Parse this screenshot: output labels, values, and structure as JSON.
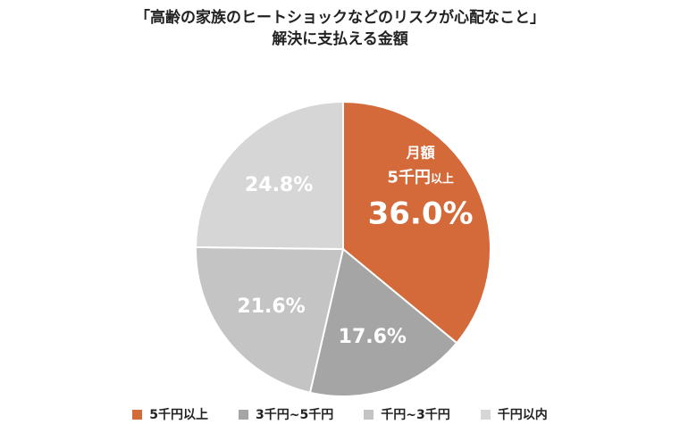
{
  "chart_data": {
    "type": "pie",
    "title": [
      "「高齢の家族のヒートショックなどのリスクが心配なこと」",
      "解決に支払える金額"
    ],
    "categories": [
      "5千円以上",
      "3千円~5千円",
      "千円~3千円",
      "千円以内"
    ],
    "values": [
      36.0,
      17.6,
      21.6,
      24.8
    ],
    "labels": [
      "36.0%",
      "17.6%",
      "21.6%",
      "24.8%"
    ],
    "colors": [
      "#D4693A",
      "#A5A5A5",
      "#C4C4C4",
      "#D6D6D6"
    ],
    "annotation": {
      "line1": "月額",
      "line2": "5千円",
      "line2_small": "以上"
    },
    "legend_position": "bottom",
    "start_angle_deg": 0,
    "direction": "clockwise"
  }
}
